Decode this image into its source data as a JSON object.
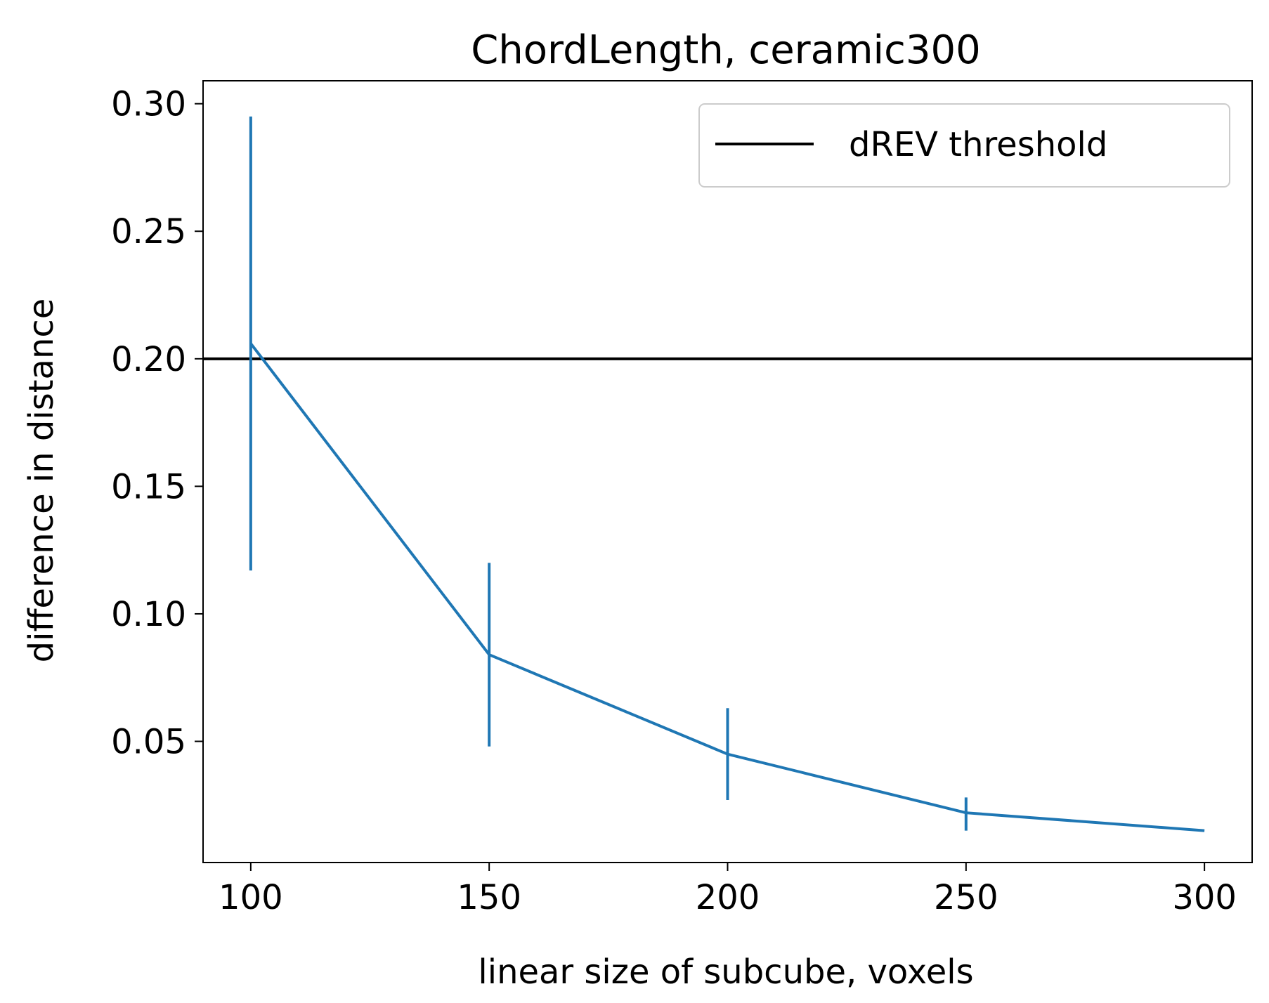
{
  "chart_data": {
    "type": "line",
    "title": "ChordLength, ceramic300",
    "xlabel": "linear size of subcube, voxels",
    "ylabel": "difference in distance",
    "xlim": [
      90,
      310
    ],
    "ylim": [
      0.0025,
      0.309
    ],
    "xticks": [
      100,
      150,
      200,
      250,
      300
    ],
    "xtick_labels": [
      "100",
      "150",
      "200",
      "250",
      "300"
    ],
    "yticks": [
      0.05,
      0.1,
      0.15,
      0.2,
      0.25,
      0.3
    ],
    "ytick_labels": [
      "0.05",
      "0.10",
      "0.15",
      "0.20",
      "0.25",
      "0.30"
    ],
    "grid": false,
    "legend_position": "top-right",
    "series": [
      {
        "x": [
          100,
          150,
          200,
          250,
          300
        ],
        "y": [
          0.206,
          0.084,
          0.045,
          0.022,
          0.015
        ],
        "error": [
          [
            0.117,
            0.295
          ],
          [
            0.048,
            0.12
          ],
          [
            0.027,
            0.063
          ],
          [
            0.015,
            0.028
          ],
          [
            0.015,
            0.015
          ]
        ],
        "color": "#1f77b4"
      }
    ],
    "reference_lines": [
      {
        "name": "dREV threshold",
        "y": 0.2,
        "color": "#000000"
      }
    ]
  }
}
